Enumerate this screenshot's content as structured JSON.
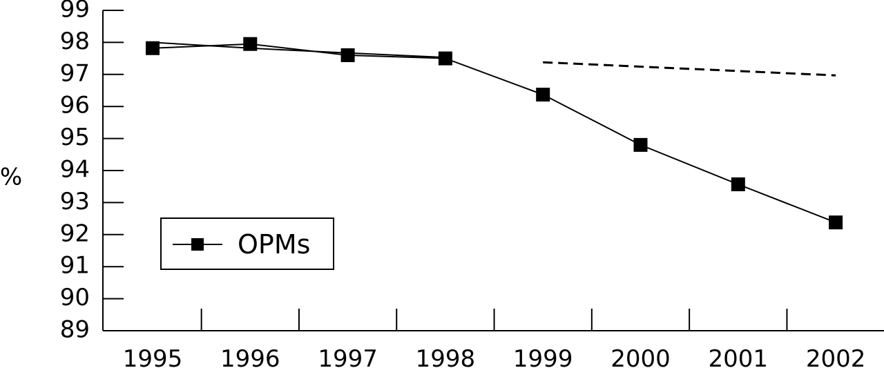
{
  "chart_data": {
    "type": "line",
    "ylabel": "%",
    "xlabel": "",
    "categories": [
      "1995",
      "1996",
      "1997",
      "1998",
      "1999",
      "2000",
      "2001",
      "2002"
    ],
    "ylim": [
      89,
      99
    ],
    "yticks": [
      89,
      90,
      91,
      92,
      93,
      94,
      95,
      96,
      97,
      98,
      99
    ],
    "grid": false,
    "legend_position": "bottom-left",
    "series": [
      {
        "name": "OPMs",
        "style": "solid-line-square-markers",
        "color": "#000000",
        "values": [
          97.82,
          97.95,
          97.6,
          97.5,
          96.37,
          94.8,
          93.57,
          92.38
        ]
      },
      {
        "name": "",
        "style": "solid-line-no-markers",
        "color": "#000000",
        "x": [
          "1995",
          "1996",
          "1997",
          "1998"
        ],
        "values": [
          98.0,
          97.82,
          97.67,
          97.53
        ]
      },
      {
        "name": "",
        "style": "dashed-line",
        "color": "#000000",
        "x": [
          "1999",
          "2002"
        ],
        "values": [
          97.38,
          96.97
        ]
      }
    ]
  }
}
